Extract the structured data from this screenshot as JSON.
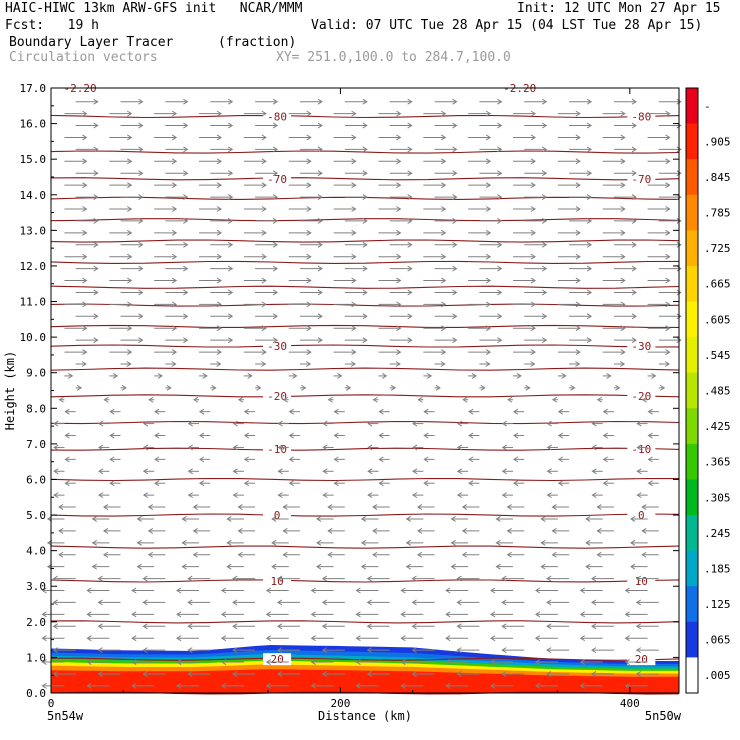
{
  "header": {
    "line1_left": "HAIC-HIWC 13km ARW-GFS init   NCAR/MMM",
    "line1_right": "Init: 12 UTC Mon 27 Apr 15",
    "line2_left": "Fcst:   19 h",
    "line2_right": "Valid: 07 UTC Tue 28 Apr 15 (04 LST Tue 28 Apr 15)",
    "line3_left": "Boundary Layer Tracer",
    "line3_units": "(fraction)",
    "line4_left": "Circulation vectors",
    "line4_xy": "XY= 251.0,100.0 to 284.7,100.0"
  },
  "chart_data": {
    "type": "heatmap",
    "xlabel": "Distance (km)",
    "ylabel": "Height (km)",
    "xlim": [
      0,
      434
    ],
    "ylim": [
      0,
      17
    ],
    "x_ticks": [
      0,
      200,
      400
    ],
    "y_ticks": [
      "0.0",
      "1.0",
      "2.0",
      "3.0",
      "4.0",
      "5.0",
      "6.0",
      "7.0",
      "8.0",
      "9.0",
      "10.0",
      "11.0",
      "12.0",
      "13.0",
      "14.0",
      "15.0",
      "16.0",
      "17.0"
    ],
    "x_endpoint_labels": [
      "5n54w",
      "5n50w"
    ],
    "colorbar_labels": [
      "-",
      ".905",
      ".845",
      ".785",
      ".725",
      ".665",
      ".605",
      ".545",
      ".485",
      ".425",
      ".365",
      ".305",
      ".245",
      ".185",
      ".125",
      ".065",
      ".005"
    ],
    "colorbar_colors": [
      "#e8001a",
      "#ff2200",
      "#ff5a00",
      "#ff8a00",
      "#ffb000",
      "#ffd400",
      "#fff000",
      "#e4f000",
      "#b8e600",
      "#7fd800",
      "#38c800",
      "#00b820",
      "#00b890",
      "#00a8c8",
      "#1070e8",
      "#1838e0",
      "#ffffff"
    ],
    "tracer_profile": {
      "x": [
        0,
        50,
        100,
        150,
        200,
        250,
        300,
        350,
        400,
        434
      ],
      "top_km": [
        1.25,
        1.2,
        1.18,
        1.35,
        1.32,
        1.28,
        1.1,
        0.95,
        0.9,
        0.9
      ],
      "core_top_km": [
        1.05,
        1.0,
        1.0,
        1.1,
        1.05,
        1.0,
        0.9,
        0.8,
        0.75,
        0.75
      ]
    },
    "temperature_isotherms": [
      {
        "label": "20",
        "height_km": 0.95
      },
      {
        "label": "10",
        "height_km": 3.15
      },
      {
        "label": "0",
        "height_km": 5.0
      },
      {
        "label": "-10",
        "height_km": 6.85
      },
      {
        "label": "-20",
        "height_km": 8.35
      },
      {
        "label": "-30",
        "height_km": 9.75
      },
      {
        "label": "-70",
        "height_km": 14.45
      },
      {
        "label": "-80",
        "height_km": 16.2
      }
    ],
    "unlabeled_isotherm_heights_km": [
      0.0,
      2.0,
      4.1,
      6.0,
      7.6,
      9.1,
      10.3,
      10.9,
      11.4,
      12.1,
      12.7,
      13.3,
      13.9,
      15.2
    ],
    "top_edge_labels": [
      "-2.20",
      "-2.20"
    ],
    "vectors_note": "Circulation vectors",
    "colors": {
      "isotherm": "#8b1a1a",
      "vector": "#808080",
      "axis": "#000000"
    }
  }
}
